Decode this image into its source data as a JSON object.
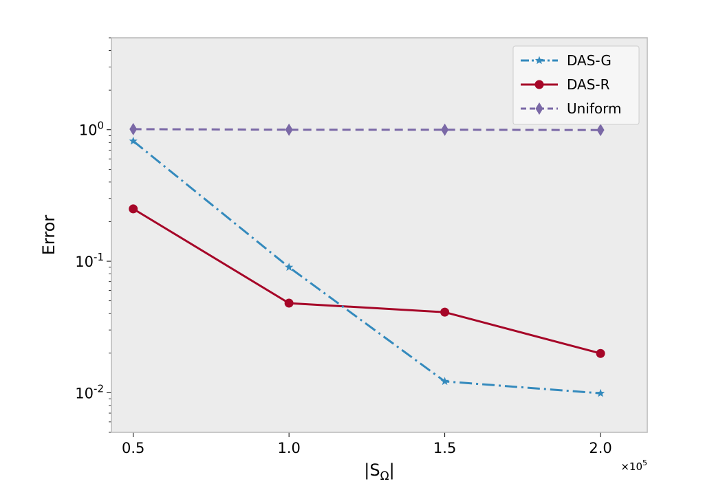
{
  "chart_data": {
    "type": "line",
    "title": "",
    "xlabel": "|S",
    "xlabel_sub": "Ω",
    "xlabel_close": "|",
    "ylabel": "Error",
    "yscale": "log",
    "x_multiplier_base": "×10",
    "x_multiplier_exp": "5",
    "x": [
      0.5,
      1.0,
      1.5,
      2.0
    ],
    "xticks": [
      "0.5",
      "1.0",
      "1.5",
      "2.0"
    ],
    "xlim": [
      0.43,
      2.15
    ],
    "ylim": [
      0.005,
      5.0
    ],
    "yticks": [
      {
        "value": 1.0,
        "base": "10",
        "exp": "0"
      },
      {
        "value": 0.1,
        "base": "10",
        "exp": "-1"
      },
      {
        "value": 0.01,
        "base": "10",
        "exp": "-2"
      }
    ],
    "grid": false,
    "background": "#ececec",
    "legend_position": "top-right",
    "series": [
      {
        "name": "DAS-G",
        "values": [
          0.82,
          0.09,
          0.0122,
          0.0099
        ],
        "color": "#348abd",
        "line_style": "dashdot",
        "marker": "star"
      },
      {
        "name": "DAS-R",
        "values": [
          0.25,
          0.048,
          0.041,
          0.0199
        ],
        "color": "#a60628",
        "line_style": "solid",
        "marker": "circle"
      },
      {
        "name": "Uniform",
        "values": [
          1.01,
          1.0,
          1.0,
          0.995
        ],
        "color": "#7a68a6",
        "line_style": "dashed",
        "marker": "diamond"
      }
    ]
  }
}
